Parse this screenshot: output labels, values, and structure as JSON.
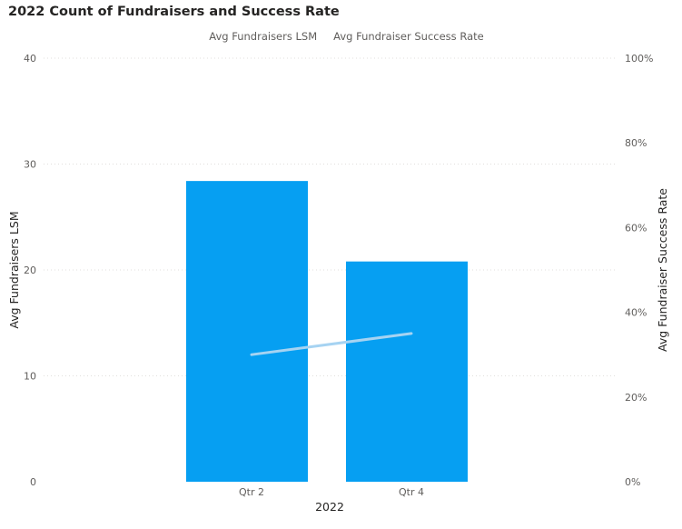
{
  "chart_data": {
    "type": "bar",
    "title": "2022 Count of Fundraisers and Success Rate",
    "categories": [
      "Qtr 2",
      "Qtr 4"
    ],
    "xlabel": "2022",
    "ylabel": "Avg Fundraisers LSM",
    "y2label": "Avg Fundraiser Success Rate",
    "ylim": [
      0,
      40
    ],
    "y2lim": [
      0,
      1
    ],
    "yticks": [
      {
        "value": 0,
        "label": "0"
      },
      {
        "value": 10,
        "label": "10"
      },
      {
        "value": 20,
        "label": "20"
      },
      {
        "value": 30,
        "label": "30"
      },
      {
        "value": 40,
        "label": "40"
      }
    ],
    "y2ticks": [
      {
        "value": 0,
        "label": "0%"
      },
      {
        "value": 0.2,
        "label": "20%"
      },
      {
        "value": 0.4,
        "label": "40%"
      },
      {
        "value": 0.6,
        "label": "60%"
      },
      {
        "value": 0.8,
        "label": "80%"
      },
      {
        "value": 1.0,
        "label": "100%"
      }
    ],
    "grid": true,
    "legend_position": "top-center",
    "series": [
      {
        "name": "Avg Fundraisers LSM",
        "type": "bar",
        "axis": "left",
        "values": [
          28.4,
          20.8
        ],
        "color": "#069ff2"
      },
      {
        "name": "Avg Fundraiser Success Rate",
        "type": "line",
        "axis": "right",
        "values": [
          0.3,
          0.35
        ],
        "color": "#a6d3f2"
      }
    ]
  }
}
